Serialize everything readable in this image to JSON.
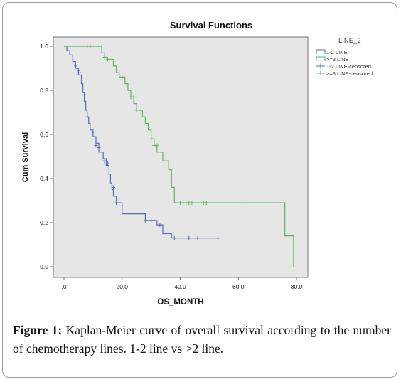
{
  "caption": {
    "label": "Figure 1:",
    "text": "Kaplan-Meier curve of overall survival according to the number of chemotherapy lines. 1-2 line vs >2 line."
  },
  "chart_data": {
    "type": "line",
    "title": "Survival Functions",
    "xlabel": "OS_MONTH",
    "ylabel": "Cum Survival",
    "xlim": [
      0,
      80
    ],
    "ylim": [
      0,
      1
    ],
    "x_ticks": [
      0,
      20,
      40,
      60,
      80
    ],
    "x_tick_labels": [
      ".0",
      "20.0",
      "40.0",
      "60.0",
      "80.0"
    ],
    "y_ticks": [
      0,
      0.2,
      0.4,
      0.6,
      0.8,
      1.0
    ],
    "y_tick_labels": [
      "0.0",
      "0.2",
      "0.4",
      "0.6",
      "0.8",
      "1.0"
    ],
    "grid": false,
    "plot_background": "#e6e6e6",
    "legend": {
      "title": "LINE_2",
      "placement": "right",
      "entries": [
        {
          "label": "1-2 LINE",
          "color": "#5a6ab8",
          "kind": "line"
        },
        {
          "label": ">=3 LINE",
          "color": "#5ab45a",
          "kind": "line"
        },
        {
          "label": "1-2 LINE-censored",
          "color": "#5a6ab8",
          "kind": "censor"
        },
        {
          "label": ">=3 LINE-censored",
          "color": "#5ab45a",
          "kind": "censor"
        }
      ]
    },
    "series": [
      {
        "name": "1-2 LINE",
        "color": "#5a6ab8",
        "steps": [
          [
            0,
            1.0
          ],
          [
            1,
            0.98
          ],
          [
            2,
            0.96
          ],
          [
            3,
            0.93
          ],
          [
            4,
            0.9
          ],
          [
            5,
            0.87
          ],
          [
            6,
            0.83
          ],
          [
            6.5,
            0.79
          ],
          [
            7,
            0.75
          ],
          [
            7.5,
            0.71
          ],
          [
            8,
            0.68
          ],
          [
            8.5,
            0.65
          ],
          [
            9,
            0.62
          ],
          [
            10,
            0.59
          ],
          [
            11,
            0.56
          ],
          [
            12,
            0.52
          ],
          [
            13.5,
            0.49
          ],
          [
            14.5,
            0.46
          ],
          [
            15.5,
            0.42
          ],
          [
            16,
            0.38
          ],
          [
            16.5,
            0.35
          ],
          [
            17,
            0.32
          ],
          [
            18,
            0.29
          ],
          [
            20,
            0.24
          ],
          [
            28,
            0.21
          ],
          [
            32,
            0.19
          ],
          [
            34,
            0.15
          ],
          [
            37,
            0.13
          ],
          [
            53,
            0.13
          ]
        ],
        "censored": [
          [
            4,
            0.91
          ],
          [
            5,
            0.89
          ],
          [
            5.5,
            0.88
          ],
          [
            7,
            0.78
          ],
          [
            8,
            0.68
          ],
          [
            10,
            0.61
          ],
          [
            11,
            0.55
          ],
          [
            12,
            0.54
          ],
          [
            14,
            0.48
          ],
          [
            15,
            0.47
          ],
          [
            17,
            0.36
          ],
          [
            18,
            0.29
          ],
          [
            28,
            0.21
          ],
          [
            30,
            0.21
          ],
          [
            33,
            0.19
          ],
          [
            38,
            0.13
          ],
          [
            43,
            0.13
          ],
          [
            46,
            0.13
          ],
          [
            53,
            0.13
          ]
        ]
      },
      {
        "name": ">=3 LINE",
        "color": "#5ab45a",
        "steps": [
          [
            0,
            1.0
          ],
          [
            13,
            0.97
          ],
          [
            14,
            0.95
          ],
          [
            15,
            0.94
          ],
          [
            17,
            0.91
          ],
          [
            18,
            0.88
          ],
          [
            19,
            0.86
          ],
          [
            21,
            0.83
          ],
          [
            22,
            0.8
          ],
          [
            23,
            0.77
          ],
          [
            24,
            0.74
          ],
          [
            25,
            0.71
          ],
          [
            27,
            0.68
          ],
          [
            28,
            0.65
          ],
          [
            29,
            0.62
          ],
          [
            30,
            0.58
          ],
          [
            31,
            0.55
          ],
          [
            32,
            0.52
          ],
          [
            34,
            0.48
          ],
          [
            36,
            0.44
          ],
          [
            37,
            0.36
          ],
          [
            38,
            0.29
          ],
          [
            76,
            0.29
          ],
          [
            76,
            0.14
          ],
          [
            79,
            0.14
          ],
          [
            79,
            0.0
          ]
        ],
        "censored": [
          [
            8,
            1.0
          ],
          [
            9,
            1.0
          ],
          [
            14,
            0.95
          ],
          [
            15,
            0.94
          ],
          [
            20,
            0.86
          ],
          [
            23,
            0.77
          ],
          [
            24,
            0.77
          ],
          [
            25,
            0.71
          ],
          [
            30,
            0.58
          ],
          [
            31,
            0.55
          ],
          [
            32,
            0.55
          ],
          [
            40,
            0.29
          ],
          [
            41,
            0.29
          ],
          [
            42,
            0.29
          ],
          [
            43,
            0.29
          ],
          [
            44,
            0.29
          ],
          [
            48,
            0.29
          ],
          [
            49,
            0.29
          ],
          [
            63,
            0.29
          ]
        ]
      }
    ]
  }
}
